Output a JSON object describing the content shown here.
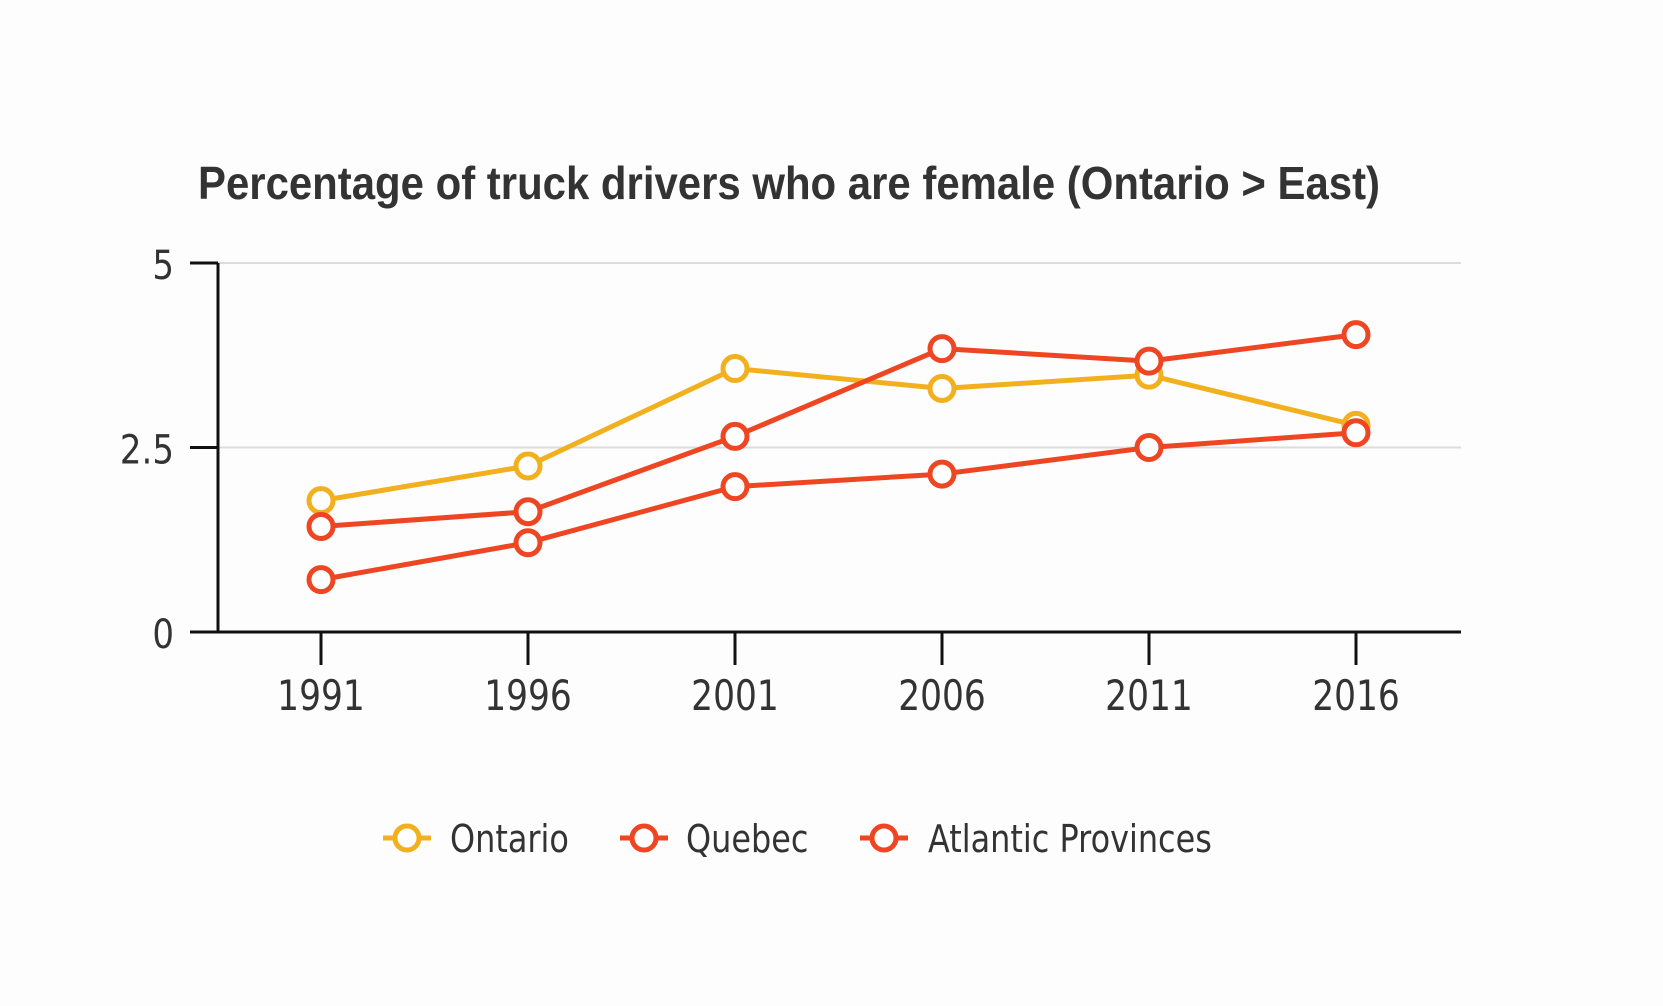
{
  "chart_data": {
    "type": "line",
    "title": "Percentage of truck drivers who are female (Ontario > East)",
    "xlabel": "",
    "ylabel": "",
    "x": [
      "1991",
      "1996",
      "2001",
      "2006",
      "2011",
      "2016"
    ],
    "ylim": [
      0,
      5
    ],
    "yticks": [
      0,
      2.5,
      5
    ],
    "ytick_labels": [
      "0",
      "2.5",
      "5"
    ],
    "grid": true,
    "legend_position": "bottom",
    "series": [
      {
        "name": "Ontario",
        "color": "#f2b01e",
        "values": [
          1.78,
          2.25,
          3.57,
          3.3,
          3.48,
          2.8
        ]
      },
      {
        "name": "Quebec",
        "color": "#ee4523",
        "values": [
          1.43,
          1.63,
          2.65,
          3.84,
          3.67,
          4.03
        ]
      },
      {
        "name": "Atlantic Provinces",
        "color": "#ee4523",
        "values": [
          0.71,
          1.21,
          1.97,
          2.14,
          2.5,
          2.7
        ]
      }
    ]
  }
}
